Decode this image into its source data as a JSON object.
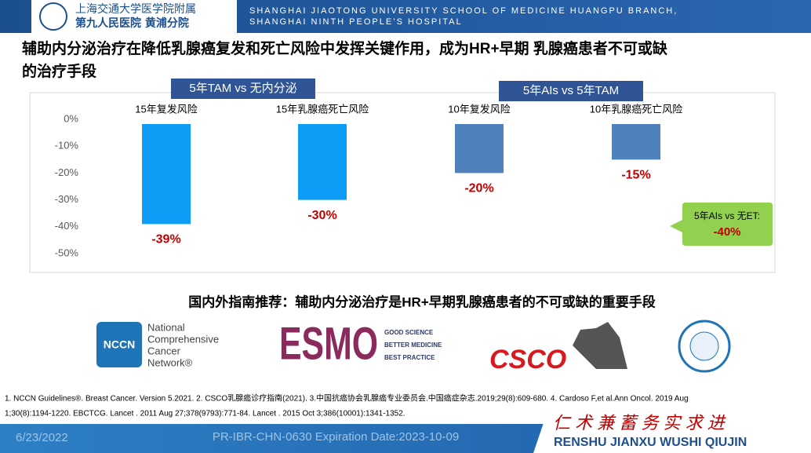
{
  "header": {
    "logo_line1": "上海交通大学医学院附属",
    "logo_line2": "第九人民医院 黄浦分院",
    "english_line1": "SHANGHAI JIAOTONG UNIVERSITY SCHOOL OF MEDICINE HUANGPU BRANCH,",
    "english_line2": "SHANGHAI NINTH PEOPLE’S HOSPITAL"
  },
  "title_lines": [
    "辅助内分泌治疗在降低乳腺癌复发和死亡风险中发挥关键作用，成为HR+早期 乳腺癌患者不可或缺",
    "的治疗手段"
  ],
  "chart_data": {
    "type": "bar",
    "categories": [
      "15年复发风险",
      "15年乳腺癌死亡风险",
      "10年复发风险",
      "10年乳腺癌死亡风险"
    ],
    "values": [
      -39,
      -30,
      -20,
      -15
    ],
    "value_labels": [
      "-39%",
      "-30%",
      "-20%",
      "-15%"
    ],
    "colors": [
      "#0d9cf6",
      "#0d9cf6",
      "#4f81bd",
      "#4f81bd"
    ],
    "ylim": [
      -50,
      0
    ],
    "yticks": [
      {
        "value": 0,
        "label": "0%"
      },
      {
        "value": -10,
        "label": "-10%"
      },
      {
        "value": -20,
        "label": "-20%"
      },
      {
        "value": -30,
        "label": "-30%"
      },
      {
        "value": -40,
        "label": "-40%"
      },
      {
        "value": -50,
        "label": "-50%"
      }
    ],
    "groups": [
      "5年TAM vs 无内分泌",
      "5年AIs vs 5年TAM"
    ],
    "callout": {
      "text": "5年AIs vs 无ET:",
      "value_label": "-40%"
    }
  },
  "guideline": "国内外指南推荐：辅助内分泌治疗是HR+早期乳腺癌患者的不可或缺的重要手段",
  "logos": {
    "nccn": "NCCN",
    "nccn_name": [
      "National",
      "Comprehensive",
      "Cancer",
      "Network®"
    ],
    "esmo": "ESMO",
    "esmo_motto": [
      "GOOD SCIENCE",
      "BETTER MEDICINE",
      "BEST PRACTICE"
    ],
    "csco": "CSCO"
  },
  "references": [
    "1. NCCN Guidelines®. Breast Cancer. Version 5.2021. 2. CSCO乳腺癌诊疗指南(2021). 3.中国抗癌协会乳腺癌专业委员会.中国癌症杂志.2019;29(8):609-680. 4. Cardoso F,et al.Ann Oncol. 2019 Aug",
    "1;30(8):1194-1220. EBCTCG. Lancet . 2011 Aug 27;378(9793):771-84. Lancet . 2015 Oct 3;386(10001):1341-1352."
  ],
  "footer": {
    "date": "6/23/2022",
    "code": "PR-IBR-CHN-0630  Expiration Date:2023-10-09",
    "motto_cn": "仁 术  兼 蓄  务 实  求 进",
    "motto_en": "RENSHU  JIANXU  WUSHI  QIUJIN"
  }
}
